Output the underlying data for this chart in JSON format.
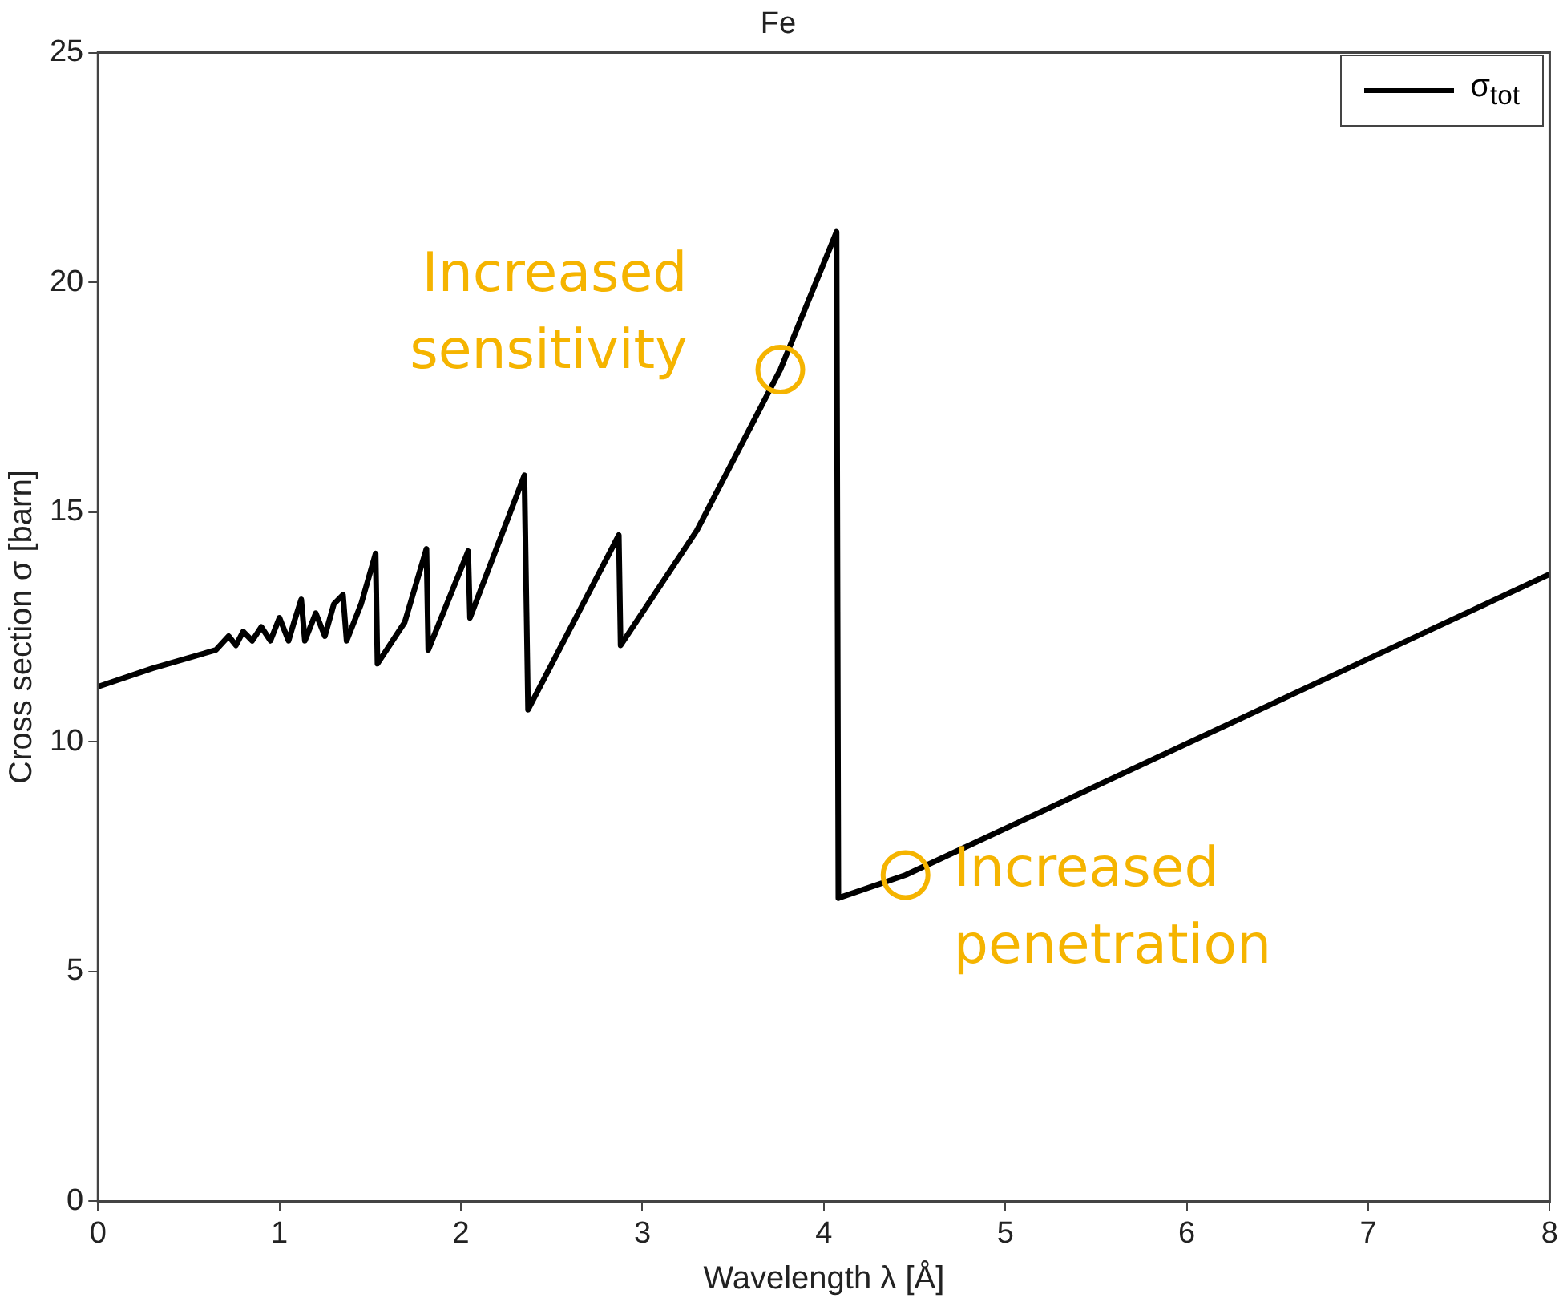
{
  "chart_data": {
    "type": "line",
    "title": "Fe",
    "xlabel": "Wavelength λ [Å]",
    "ylabel": "Cross section σ [barn]",
    "series": [
      {
        "name": "σ$_{tot}$",
        "color": "#000000",
        "x": [
          0,
          0.3,
          0.65,
          0.72,
          0.76,
          0.8,
          0.85,
          0.9,
          0.95,
          1.0,
          1.05,
          1.08,
          1.12,
          1.14,
          1.2,
          1.25,
          1.3,
          1.35,
          1.37,
          1.45,
          1.53,
          1.54,
          1.69,
          1.81,
          1.82,
          2.04,
          2.05,
          2.35,
          2.37,
          2.87,
          2.88,
          3.3,
          3.76,
          4.07,
          4.08,
          4.45,
          8
        ],
        "values": [
          11.2,
          11.6,
          12.0,
          12.3,
          12.1,
          12.4,
          12.2,
          12.5,
          12.2,
          12.7,
          12.2,
          12.6,
          13.1,
          12.2,
          12.8,
          12.3,
          13.0,
          13.2,
          12.2,
          13.0,
          14.1,
          11.7,
          12.6,
          14.2,
          12.0,
          14.15,
          12.7,
          15.8,
          10.7,
          14.5,
          12.1,
          14.6,
          18.1,
          21.1,
          6.6,
          7.1,
          13.65
        ]
      }
    ],
    "xlim": [
      0,
      8
    ],
    "xticks": [
      0,
      1,
      2,
      3,
      4,
      5,
      6,
      7,
      8
    ],
    "ylim": [
      0,
      25
    ],
    "yticks": [
      0,
      5,
      10,
      15,
      20,
      25
    ],
    "grid": false,
    "legend": "top right",
    "marker": "none",
    "line_style": "solid",
    "annotations": [
      {
        "text": "Increased sensitivity",
        "x": 3.76,
        "y": 18.1
      },
      {
        "text": "Increased penetration",
        "x": 4.45,
        "y": 7.1
      }
    ]
  }
}
